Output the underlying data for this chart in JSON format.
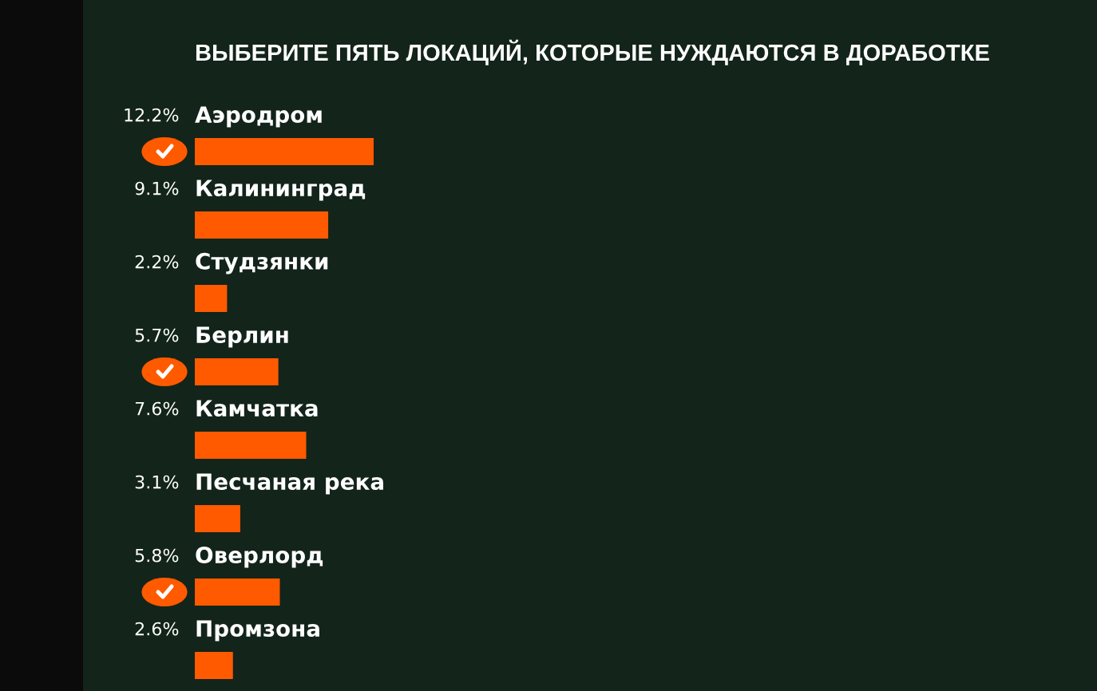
{
  "chart_data": {
    "type": "bar",
    "orientation": "horizontal",
    "title": "ВЫБЕРИТЕ ПЯТЬ ЛОКАЦИЙ, КОТОРЫЕ НУЖДАЮТСЯ В ДОРАБОТКЕ",
    "categories": [
      "Аэродром",
      "Калининград",
      "Студзянки",
      "Берлин",
      "Камчатка",
      "Песчаная река",
      "Оверлорд",
      "Промзона"
    ],
    "values": [
      12.2,
      9.1,
      2.2,
      5.7,
      7.6,
      3.1,
      5.8,
      2.6
    ],
    "value_labels": [
      "12.2%",
      "9.1%",
      "2.2%",
      "5.7%",
      "7.6%",
      "3.1%",
      "5.8%",
      "2.6%"
    ],
    "color": "#ff5a00"
  }
}
